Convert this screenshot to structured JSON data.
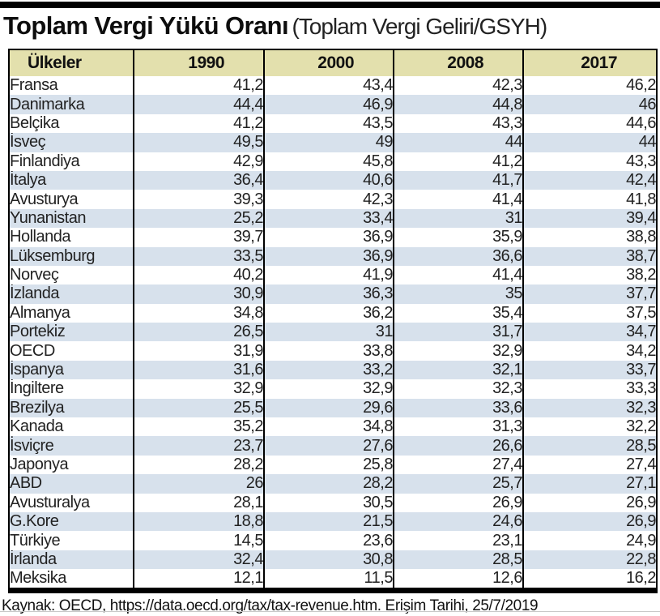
{
  "title": {
    "main": "Toplam Vergi Yükü Oranı",
    "sub": "(Toplam Vergi Geliri/GSYH)"
  },
  "source_line": "Kaynak: OECD, https://data.oecd.org/tax/tax-revenue.htm. Erişim Tarihi, 25/7/2019",
  "colors": {
    "header_bg": "#e3e0ad",
    "stripe_bg": "#d7e1ec",
    "border": "#000000"
  },
  "chart_data": {
    "type": "table",
    "title": "Toplam Vergi Yükü Oranı (Toplam Vergi Geliri/GSYH)",
    "columns": [
      "Ülkeler",
      "1990",
      "2000",
      "2008",
      "2017"
    ],
    "rows": [
      [
        "Fransa",
        "41,2",
        "43,4",
        "42,3",
        "46,2"
      ],
      [
        "Danimarka",
        "44,4",
        "46,9",
        "44,8",
        "46"
      ],
      [
        "Belçika",
        "41,2",
        "43,5",
        "43,3",
        "44,6"
      ],
      [
        "İsveç",
        "49,5",
        "49",
        "44",
        "44"
      ],
      [
        "Finlandiya",
        "42,9",
        "45,8",
        "41,2",
        "43,3"
      ],
      [
        "İtalya",
        "36,4",
        "40,6",
        "41,7",
        "42,4"
      ],
      [
        "Avusturya",
        "39,3",
        "42,3",
        "41,4",
        "41,8"
      ],
      [
        "Yunanistan",
        "25,2",
        "33,4",
        "31",
        "39,4"
      ],
      [
        "Hollanda",
        "39,7",
        "36,9",
        "35,9",
        "38,8"
      ],
      [
        "Lüksemburg",
        "33,5",
        "36,9",
        "36,6",
        "38,7"
      ],
      [
        "Norveç",
        "40,2",
        "41,9",
        "41,4",
        "38,2"
      ],
      [
        "İzlanda",
        "30,9",
        "36,3",
        "35",
        "37,7"
      ],
      [
        "Almanya",
        "34,8",
        "36,2",
        "35,4",
        "37,5"
      ],
      [
        "Portekiz",
        "26,5",
        "31",
        "31,7",
        "34,7"
      ],
      [
        "OECD",
        "31,9",
        "33,8",
        "32,9",
        "34,2"
      ],
      [
        "İspanya",
        "31,6",
        "33,2",
        "32,1",
        "33,7"
      ],
      [
        "İngiltere",
        "32,9",
        "32,9",
        "32,3",
        "33,3"
      ],
      [
        "Brezilya",
        "25,5",
        "29,6",
        "33,6",
        "32,3"
      ],
      [
        "Kanada",
        "35,2",
        "34,8",
        "31,3",
        "32,2"
      ],
      [
        "İsviçre",
        "23,7",
        "27,6",
        "26,6",
        "28,5"
      ],
      [
        "Japonya",
        "28,2",
        "25,8",
        "27,4",
        "27,4"
      ],
      [
        "ABD",
        "26",
        "28,2",
        "25,7",
        "27,1"
      ],
      [
        "Avusturalya",
        "28,1",
        "30,5",
        "26,9",
        "26,9"
      ],
      [
        "G.Kore",
        "18,8",
        "21,5",
        "24,6",
        "26,9"
      ],
      [
        "Türkiye",
        "14,5",
        "23,6",
        "23,1",
        "24,9"
      ],
      [
        "İrlanda",
        "32,4",
        "30,8",
        "28,5",
        "22,8"
      ],
      [
        "Meksika",
        "12,1",
        "11,5",
        "12,6",
        "16,2"
      ]
    ]
  }
}
